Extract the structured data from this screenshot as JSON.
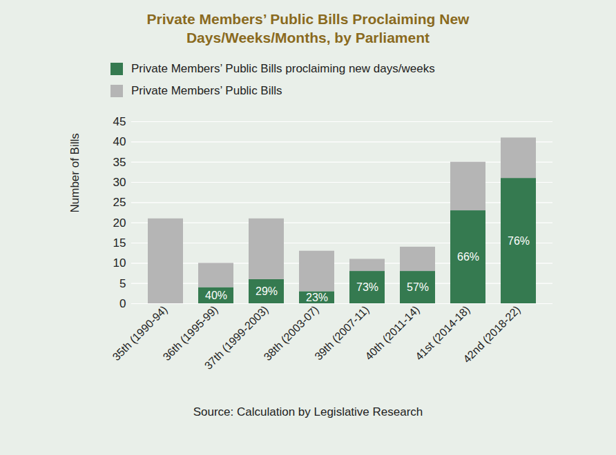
{
  "chart_data": {
    "type": "bar",
    "stacked": true,
    "title": "Private Members’ Public Bills Proclaiming New Days/Weeks/Months, by Parliament",
    "y_label": "Number of Bills",
    "source": "Source: Calculation by Legislative Research",
    "categories": [
      "35th (1990-94)",
      "36th (1995-99)",
      "37th (1999-2003)",
      "38th (2003-07)",
      "39th (2007-11)",
      "40th (2011-14)",
      "41st (2014-18)",
      "42nd (2018-22)"
    ],
    "series": [
      {
        "name": "Private Members’ Public Bills proclaiming new days/weeks",
        "color": "#357a50",
        "values": [
          0,
          4,
          6,
          3,
          8,
          8,
          23,
          31
        ]
      },
      {
        "name": "Private Members’ Public Bills",
        "color": "#b5b5b5",
        "values": [
          21,
          6,
          15,
          10,
          3,
          6,
          12,
          10
        ]
      }
    ],
    "annotations": [
      {
        "x": "36th (1995-99)",
        "text": "40%"
      },
      {
        "x": "37th (1999-2003)",
        "text": "29%"
      },
      {
        "x": "38th (2003-07)",
        "text": "23%"
      },
      {
        "x": "39th (2007-11)",
        "text": "73%"
      },
      {
        "x": "40th (2011-14)",
        "text": "57%"
      },
      {
        "x": "41st (2014-18)",
        "text": "66%"
      },
      {
        "x": "42nd (2018-22)",
        "text": "76%"
      }
    ],
    "ylim": [
      0,
      45
    ],
    "yticks": [
      0,
      5,
      10,
      15,
      20,
      25,
      30,
      35,
      40,
      45
    ],
    "grid": true,
    "legend": "top"
  }
}
